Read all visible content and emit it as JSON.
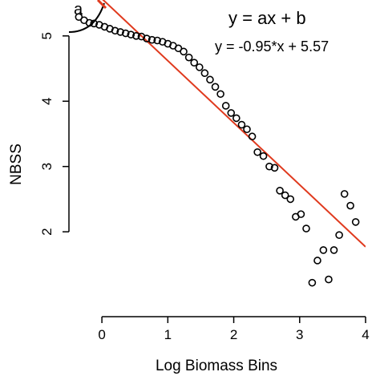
{
  "chart_data": {
    "type": "scatter",
    "panel_label": "a",
    "annotations": {
      "general_equation": "y = ax + b",
      "fit_equation": "y = -0.95*x + 5.57"
    },
    "xlabel": "Log Biomass Bins",
    "ylabel": "NBSS",
    "xlim": [
      -0.5,
      4.0
    ],
    "ylim": [
      0.7,
      5.55
    ],
    "x_ticks": [
      0,
      1,
      2,
      3,
      4
    ],
    "x_tick_labels": [
      "0",
      "1",
      "2",
      "3",
      "4"
    ],
    "y_ticks": [
      2,
      3,
      4,
      5
    ],
    "y_tick_labels": [
      "2",
      "3",
      "4",
      "5"
    ],
    "grid": false,
    "fit_line": {
      "slope": -0.95,
      "intercept": 5.57,
      "color": "#e03a1e"
    },
    "points": {
      "x": [
        -0.35,
        -0.27,
        -0.19,
        -0.12,
        -0.04,
        0.04,
        0.12,
        0.2,
        0.28,
        0.36,
        0.44,
        0.52,
        0.6,
        0.68,
        0.76,
        0.84,
        0.92,
        1.0,
        1.08,
        1.16,
        1.24,
        1.32,
        1.4,
        1.48,
        1.56,
        1.64,
        1.72,
        1.8,
        1.88,
        1.96,
        2.04,
        2.12,
        2.2,
        2.28,
        2.36,
        2.45,
        2.54,
        2.62,
        2.7,
        2.78,
        2.86,
        2.94,
        3.02,
        3.1,
        3.19,
        3.27,
        3.36,
        3.44,
        3.52,
        3.6,
        3.68,
        3.77,
        3.85
      ],
      "y": [
        5.29,
        5.24,
        5.2,
        5.19,
        5.17,
        5.14,
        5.11,
        5.08,
        5.06,
        5.04,
        5.02,
        5.0,
        4.99,
        4.96,
        4.94,
        4.93,
        4.91,
        4.88,
        4.85,
        4.81,
        4.76,
        4.67,
        4.59,
        4.52,
        4.43,
        4.33,
        4.22,
        4.11,
        3.93,
        3.82,
        3.74,
        3.64,
        3.57,
        3.46,
        3.22,
        3.16,
        3.0,
        2.98,
        2.63,
        2.56,
        2.5,
        2.23,
        2.27,
        2.05,
        1.22,
        1.56,
        1.72,
        1.27,
        1.72,
        1.95,
        2.58,
        2.4,
        2.15
      ],
      "marker": "open-circle",
      "color": "#000000"
    }
  }
}
